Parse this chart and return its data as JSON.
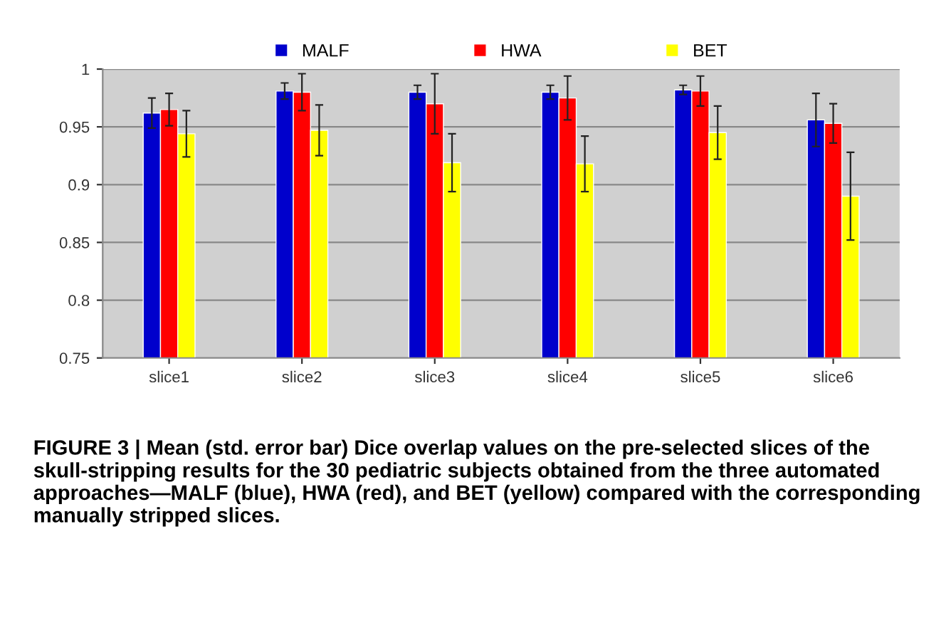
{
  "chart_data": {
    "type": "bar",
    "categories": [
      "slice1",
      "slice2",
      "slice3",
      "slice4",
      "slice5",
      "slice6"
    ],
    "series": [
      {
        "name": "MALF",
        "color": "#0000cc",
        "values": [
          0.962,
          0.981,
          0.98,
          0.98,
          0.982,
          0.956
        ],
        "errors": [
          0.013,
          0.007,
          0.006,
          0.006,
          0.004,
          0.023
        ]
      },
      {
        "name": "HWA",
        "color": "#ff0000",
        "values": [
          0.965,
          0.98,
          0.97,
          0.975,
          0.981,
          0.953
        ],
        "errors": [
          0.014,
          0.016,
          0.026,
          0.019,
          0.013,
          0.017
        ]
      },
      {
        "name": "BET",
        "color": "#ffff00",
        "values": [
          0.944,
          0.947,
          0.919,
          0.918,
          0.945,
          0.89
        ],
        "errors": [
          0.02,
          0.022,
          0.025,
          0.024,
          0.023,
          0.038
        ]
      }
    ],
    "ylim": [
      0.75,
      1
    ],
    "yticks": [
      0.75,
      0.8,
      0.85,
      0.9,
      0.95,
      1
    ],
    "grid": "y",
    "legend": "top",
    "annotations": [
      "FIGURE 3 | Mean (std. error bar) Dice overlap values on the pre-selected slices of the skull-stripping results for the 30 pediatric subjects obtained from the three automated approaches—MALF (blue), HWA (red), and BET (yellow) compared with the corresponding manually stripped slices."
    ]
  }
}
